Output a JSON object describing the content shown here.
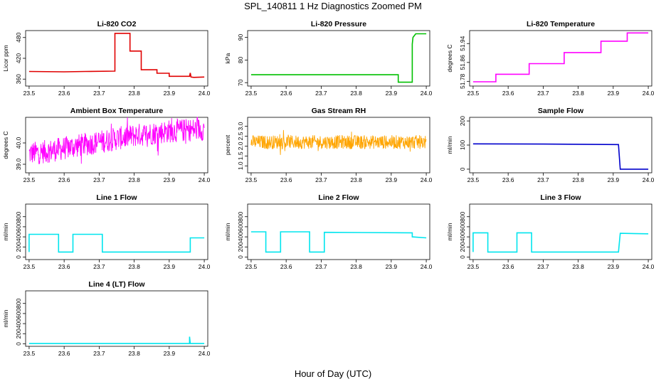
{
  "page": {
    "title": "SPL_140811  1 Hz Diagnostics Zoomed PM",
    "xlabel": "Hour of Day (UTC)"
  },
  "chart_data": [
    {
      "type": "line",
      "title": "Li-820 CO2",
      "ylabel": "Licor ppm",
      "color": "#e00000",
      "xlim": [
        23.49,
        24.01
      ],
      "ylim": [
        340,
        500
      ],
      "xticks": [
        23.5,
        23.6,
        23.7,
        23.8,
        23.9,
        24.0
      ],
      "xtick_labels": [
        "23.5",
        "23.6",
        "23.7",
        "23.8",
        "23.9",
        "24.0"
      ],
      "yticks": [
        360,
        420,
        480
      ],
      "ytick_labels": [
        "360",
        "420",
        "480"
      ],
      "series": [
        {
          "x": [
            23.5,
            23.6,
            23.66,
            23.745,
            23.745,
            23.788,
            23.788,
            23.82,
            23.82,
            23.865,
            23.865,
            23.9,
            23.9,
            23.958,
            23.96,
            23.962,
            23.97,
            24.0
          ],
          "y": [
            382,
            381,
            382,
            383,
            492,
            492,
            441,
            441,
            387,
            387,
            377,
            377,
            368,
            368,
            378,
            366,
            365,
            366
          ]
        }
      ]
    },
    {
      "type": "line",
      "title": "Li-820 Pressure",
      "ylabel": "kPa",
      "color": "#00c000",
      "xlim": [
        23.49,
        24.01
      ],
      "ylim": [
        68.5,
        93
      ],
      "xticks": [
        23.5,
        23.6,
        23.7,
        23.8,
        23.9,
        24.0
      ],
      "xtick_labels": [
        "23.5",
        "23.6",
        "23.7",
        "23.8",
        "23.9",
        "24.0"
      ],
      "yticks": [
        70,
        80,
        90
      ],
      "ytick_labels": [
        "70",
        "80",
        "90"
      ],
      "series": [
        {
          "x": [
            23.5,
            23.92,
            23.92,
            23.96,
            23.96,
            23.962,
            23.97,
            24.0
          ],
          "y": [
            73.5,
            73.5,
            70.2,
            70.2,
            87,
            90,
            91.6,
            91.6
          ]
        }
      ]
    },
    {
      "type": "line",
      "title": "Li-820 Temperature",
      "ylabel": "degrees C",
      "color": "#ff00ff",
      "xlim": [
        23.49,
        24.01
      ],
      "ylim": [
        51.76,
        51.995
      ],
      "xticks": [
        23.5,
        23.6,
        23.7,
        23.8,
        23.9,
        24.0
      ],
      "xtick_labels": [
        "23.5",
        "23.6",
        "23.7",
        "23.8",
        "23.9",
        "24.0"
      ],
      "yticks": [
        51.78,
        51.86,
        51.94
      ],
      "ytick_labels": [
        "51.78",
        "51.86",
        "51.94"
      ],
      "series": [
        {
          "x": [
            23.5,
            23.565,
            23.565,
            23.66,
            23.66,
            23.76,
            23.76,
            23.865,
            23.865,
            23.94,
            23.94,
            24.0
          ],
          "y": [
            51.778,
            51.778,
            51.81,
            51.81,
            51.855,
            51.855,
            51.902,
            51.902,
            51.95,
            51.95,
            51.985,
            51.985
          ]
        }
      ]
    },
    {
      "type": "line",
      "title": "Ambient Box Temperature",
      "ylabel": "degrees C",
      "color": "#ff00ff",
      "xlim": [
        23.49,
        24.01
      ],
      "ylim": [
        38.6,
        41.2
      ],
      "xticks": [
        23.5,
        23.6,
        23.7,
        23.8,
        23.9,
        24.0
      ],
      "xtick_labels": [
        "23.5",
        "23.6",
        "23.7",
        "23.8",
        "23.9",
        "24.0"
      ],
      "yticks": [
        39.0,
        40.0
      ],
      "ytick_labels": [
        "39.0",
        "40.0"
      ],
      "series": [
        {
          "x": [
            23.5,
            23.55,
            23.6,
            23.65,
            23.7,
            23.75,
            23.8,
            23.85,
            23.9,
            23.95,
            24.0
          ],
          "y": [
            39.5,
            39.6,
            39.75,
            39.9,
            40.05,
            40.2,
            40.35,
            40.45,
            40.55,
            40.6,
            40.65
          ],
          "noise": 0.55
        }
      ]
    },
    {
      "type": "line",
      "title": "Gas Stream RH",
      "ylabel": "percent",
      "color": "#ffa500",
      "xlim": [
        23.49,
        24.01
      ],
      "ylim": [
        0.65,
        3.45
      ],
      "xticks": [
        23.5,
        23.6,
        23.7,
        23.8,
        23.9,
        24.0
      ],
      "xtick_labels": [
        "23.5",
        "23.6",
        "23.7",
        "23.8",
        "23.9",
        "24.0"
      ],
      "yticks": [
        1.0,
        1.5,
        2.0,
        2.5,
        3.0
      ],
      "ytick_labels": [
        "1.0",
        "1.5",
        "2.0",
        "2.5",
        "3.0"
      ],
      "series": [
        {
          "x": [
            23.5,
            24.0
          ],
          "y": [
            2.2,
            2.2
          ],
          "noise": 0.35
        }
      ]
    },
    {
      "type": "line",
      "title": "Sample Flow",
      "ylabel": "ml/min",
      "color": "#0000cc",
      "xlim": [
        23.49,
        24.01
      ],
      "ylim": [
        -15,
        215
      ],
      "xticks": [
        23.5,
        23.6,
        23.7,
        23.8,
        23.9,
        24.0
      ],
      "xtick_labels": [
        "23.5",
        "23.6",
        "23.7",
        "23.8",
        "23.9",
        "24.0"
      ],
      "yticks": [
        0,
        100,
        200
      ],
      "ytick_labels": [
        "0",
        "100",
        "200"
      ],
      "series": [
        {
          "x": [
            23.5,
            23.7,
            23.915,
            23.92,
            23.925,
            24.0
          ],
          "y": [
            105,
            104,
            102,
            0,
            0,
            0
          ]
        }
      ]
    },
    {
      "type": "line",
      "title": "Line 1 Flow",
      "ylabel": "ml/min",
      "color": "#00e5ee",
      "xlim": [
        23.49,
        24.01
      ],
      "ylim": [
        -50,
        1050
      ],
      "xticks": [
        23.5,
        23.6,
        23.7,
        23.8,
        23.9,
        24.0
      ],
      "xtick_labels": [
        "23.5",
        "23.6",
        "23.7",
        "23.8",
        "23.9",
        "24.0"
      ],
      "yticks": [
        0,
        200,
        400,
        600,
        800
      ],
      "ytick_labels": [
        "0",
        "200",
        "400",
        "600",
        "800"
      ],
      "series": [
        {
          "x": [
            23.5,
            23.5,
            23.584,
            23.584,
            23.625,
            23.625,
            23.709,
            23.709,
            23.96,
            23.96,
            24.0
          ],
          "y": [
            100,
            450,
            450,
            100,
            100,
            450,
            450,
            100,
            100,
            380,
            380
          ]
        }
      ]
    },
    {
      "type": "line",
      "title": "Line 2 Flow",
      "ylabel": "ml/min",
      "color": "#00e5ee",
      "xlim": [
        23.49,
        24.01
      ],
      "ylim": [
        -50,
        1050
      ],
      "xticks": [
        23.5,
        23.6,
        23.7,
        23.8,
        23.9,
        24.0
      ],
      "xtick_labels": [
        "23.5",
        "23.6",
        "23.7",
        "23.8",
        "23.9",
        "24.0"
      ],
      "yticks": [
        0,
        200,
        400,
        600,
        800
      ],
      "ytick_labels": [
        "0",
        "200",
        "400",
        "600",
        "800"
      ],
      "series": [
        {
          "x": [
            23.5,
            23.542,
            23.542,
            23.584,
            23.584,
            23.667,
            23.667,
            23.709,
            23.709,
            23.96,
            23.96,
            24.0
          ],
          "y": [
            500,
            500,
            100,
            100,
            500,
            500,
            100,
            100,
            490,
            480,
            400,
            380
          ]
        }
      ]
    },
    {
      "type": "line",
      "title": "Line 3 Flow",
      "ylabel": "ml/min",
      "color": "#00e5ee",
      "xlim": [
        23.49,
        24.01
      ],
      "ylim": [
        -50,
        1050
      ],
      "xticks": [
        23.5,
        23.6,
        23.7,
        23.8,
        23.9,
        24.0
      ],
      "xtick_labels": [
        "23.5",
        "23.6",
        "23.7",
        "23.8",
        "23.9",
        "24.0"
      ],
      "yticks": [
        0,
        200,
        400,
        600,
        800
      ],
      "ytick_labels": [
        "0",
        "200",
        "400",
        "600",
        "800"
      ],
      "series": [
        {
          "x": [
            23.5,
            23.5,
            23.542,
            23.542,
            23.625,
            23.625,
            23.667,
            23.667,
            23.915,
            23.92,
            24.0
          ],
          "y": [
            100,
            480,
            480,
            100,
            100,
            480,
            480,
            100,
            100,
            470,
            460
          ]
        }
      ]
    },
    {
      "type": "line",
      "title": "Line 4 (LT) Flow",
      "ylabel": "ml/min",
      "color": "#00e5ee",
      "xlim": [
        23.49,
        24.01
      ],
      "ylim": [
        -50,
        1050
      ],
      "xticks": [
        23.5,
        23.6,
        23.7,
        23.8,
        23.9,
        24.0
      ],
      "xtick_labels": [
        "23.5",
        "23.6",
        "23.7",
        "23.8",
        "23.9",
        "24.0"
      ],
      "yticks": [
        0,
        200,
        400,
        600,
        800
      ],
      "ytick_labels": [
        "0",
        "200",
        "400",
        "600",
        "800"
      ],
      "series": [
        {
          "x": [
            23.5,
            23.958,
            23.958,
            23.96,
            23.962,
            24.0
          ],
          "y": [
            5,
            5,
            140,
            5,
            5,
            5
          ]
        }
      ]
    }
  ]
}
